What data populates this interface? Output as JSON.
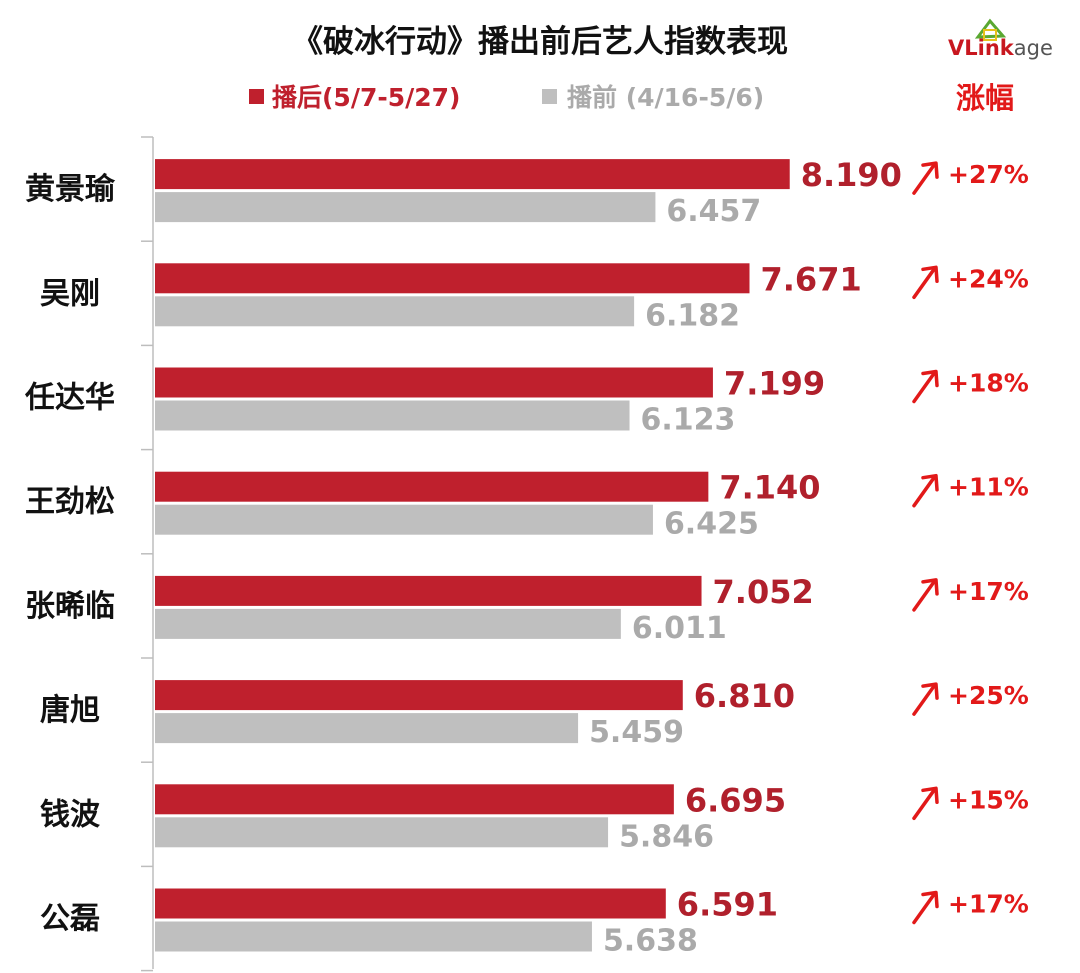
{
  "chart_data": {
    "type": "bar",
    "orientation": "horizontal",
    "title": "《破冰行动》播出前后艺人指数表现",
    "categories": [
      "黄景瑜",
      "吴刚",
      "任达华",
      "王劲松",
      "张晞临",
      "唐旭",
      "钱波",
      "公磊"
    ],
    "series": [
      {
        "name": "播后(5/7-5/27)",
        "color": "#bf202d",
        "values": [
          8.19,
          7.671,
          7.199,
          7.14,
          7.052,
          6.81,
          6.695,
          6.591
        ],
        "labels": [
          "8.190",
          "7.671",
          "7.199",
          "7.140",
          "7.052",
          "6.810",
          "6.695",
          "6.591"
        ]
      },
      {
        "name": "播前 (4/16-5/6)",
        "color": "#bfbfbf",
        "values": [
          6.457,
          6.182,
          6.123,
          6.425,
          6.011,
          5.459,
          5.846,
          5.638
        ],
        "labels": [
          "6.457",
          "6.182",
          "6.123",
          "6.425",
          "6.011",
          "5.459",
          "5.846",
          "5.638"
        ]
      }
    ],
    "growth_header": "涨幅",
    "growth": [
      "+27%",
      "+24%",
      "+18%",
      "+11%",
      "+17%",
      "+25%",
      "+15%",
      "+17%"
    ],
    "xlim": [
      0,
      10
    ],
    "grid": false,
    "legend_position": "top"
  },
  "logo": {
    "brand_main": "VLink",
    "brand_suffix": "age",
    "colors": {
      "main": "#c8171f",
      "suffix": "#555555",
      "accent": "#5aa832"
    }
  }
}
